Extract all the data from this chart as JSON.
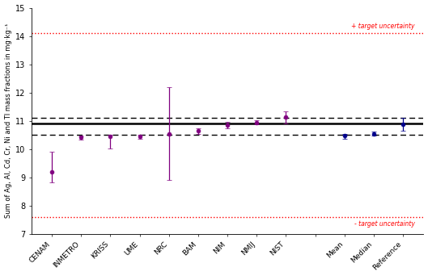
{
  "categories": [
    "CENAM",
    "INMETRO",
    "KRISS",
    "UME",
    "NRC",
    "BAM",
    "NIM",
    "NMIJ",
    "NIST",
    "",
    "Mean",
    "Median",
    "Reference"
  ],
  "values": [
    9.2,
    10.42,
    10.45,
    10.45,
    10.55,
    10.65,
    10.85,
    10.95,
    11.15,
    null,
    10.47,
    10.55,
    10.88
  ],
  "yerr_low": [
    0.38,
    0.07,
    0.42,
    0.07,
    1.65,
    0.1,
    0.12,
    0.07,
    0.25,
    null,
    0.1,
    0.07,
    0.22
  ],
  "yerr_high": [
    0.72,
    0.07,
    0.07,
    0.07,
    1.65,
    0.1,
    0.12,
    0.07,
    0.2,
    null,
    0.07,
    0.07,
    0.22
  ],
  "purple_color": "#800080",
  "blue_color": "#00008B",
  "mean_line": 10.9,
  "mean_line_unc_low": 10.52,
  "mean_line_unc_high": 11.12,
  "target_unc_high": 14.1,
  "target_unc_low": 7.6,
  "ylabel": "Sum of Ag, Al, Cd, Cr, Ni and Tl mass fractions in mg·kg⁻¹",
  "ylim": [
    7.0,
    15.0
  ],
  "yticks": [
    7,
    8,
    9,
    10,
    11,
    12,
    13,
    14,
    15
  ],
  "target_unc_label_high": "+ target uncertainty",
  "target_unc_label_low": "- target uncertainty",
  "bg_color": "#ffffff"
}
